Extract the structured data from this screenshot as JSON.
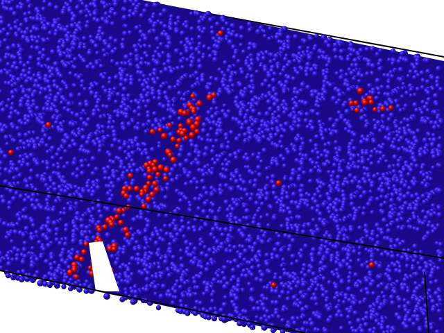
{
  "scene": {
    "kind": "molecular-dynamics-particle-render",
    "background_color": "#ffffff",
    "box_edge_color": "#000000",
    "particle_species": [
      {
        "name": "matrix",
        "color": "#2a10d0",
        "shade_color": "#12066a",
        "highlight_color": "#6a5cff"
      },
      {
        "name": "defect",
        "color": "#d00000",
        "shade_color": "#5a0000",
        "highlight_color": "#ff6a6a"
      }
    ],
    "defect_regions": [
      {
        "name": "crack-diagonal-band",
        "shape": "elongated"
      },
      {
        "name": "cluster-upper-right",
        "shape": "compact"
      }
    ],
    "voids": [
      {
        "name": "notch-bottom-left",
        "shape": "triangular-gap"
      }
    ]
  }
}
